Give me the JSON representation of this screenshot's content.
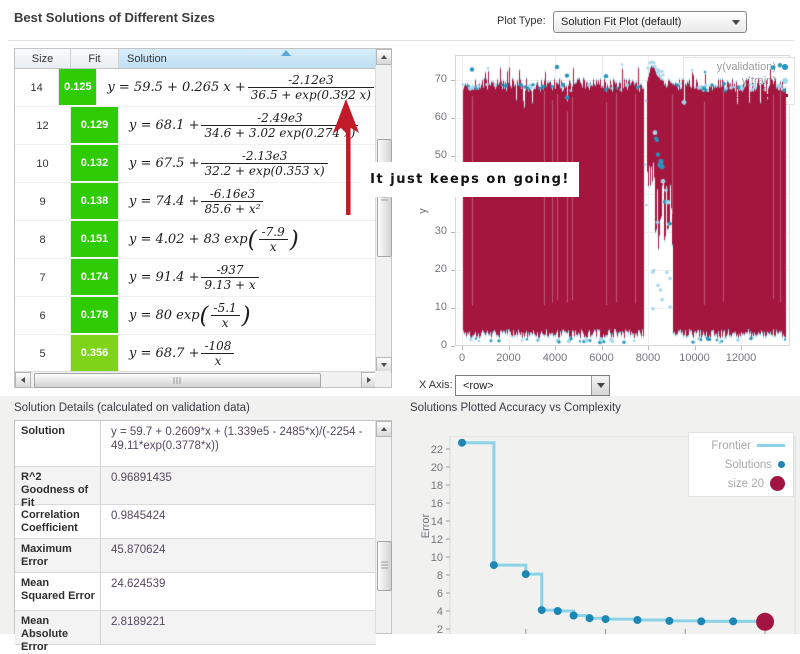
{
  "header": {
    "title": "Best Solutions of Different Sizes",
    "plot_type_label": "Plot Type:",
    "plot_type_value": "Solution Fit Plot (default)"
  },
  "solutions_table": {
    "columns": [
      "Size",
      "Fit",
      "Solution"
    ],
    "sorted_column": "Solution",
    "rows": [
      {
        "size": "14",
        "fit": "0.125",
        "fit_color": "#2fcc05",
        "eq": [
          {
            "t": "txt",
            "v": "y = 59.5 + 0.265 x + "
          },
          {
            "t": "frac",
            "n": "-2.12e3",
            "d": "36.5 + exp(0.392 x)"
          }
        ]
      },
      {
        "size": "12",
        "fit": "0.129",
        "fit_color": "#2fcc05",
        "eq": [
          {
            "t": "txt",
            "v": "y = 68.1 + "
          },
          {
            "t": "frac",
            "n": "-2.49e3",
            "d": "34.6 + 3.02 exp(0.274 x)"
          }
        ]
      },
      {
        "size": "10",
        "fit": "0.132",
        "fit_color": "#2fcc05",
        "eq": [
          {
            "t": "txt",
            "v": "y = 67.5 + "
          },
          {
            "t": "frac",
            "n": "-2.13e3",
            "d": "32.2 + exp(0.353 x)"
          }
        ]
      },
      {
        "size": "9",
        "fit": "0.138",
        "fit_color": "#2fcc05",
        "eq": [
          {
            "t": "txt",
            "v": "y = 74.4 + "
          },
          {
            "t": "frac",
            "n": "-6.16e3",
            "d": "85.6 + x²"
          }
        ]
      },
      {
        "size": "8",
        "fit": "0.151",
        "fit_color": "#2fcc05",
        "eq": [
          {
            "t": "txt",
            "v": "y = 4.02 + 83 exp"
          },
          {
            "t": "lp"
          },
          {
            "t": "frac",
            "n": "-7.9",
            "d": "x"
          },
          {
            "t": "rp"
          }
        ]
      },
      {
        "size": "7",
        "fit": "0.174",
        "fit_color": "#2fcc05",
        "eq": [
          {
            "t": "txt",
            "v": "y = 91.4 + "
          },
          {
            "t": "frac",
            "n": "-937",
            "d": "9.13 + x"
          }
        ]
      },
      {
        "size": "6",
        "fit": "0.178",
        "fit_color": "#2fcc05",
        "eq": [
          {
            "t": "txt",
            "v": "y = 80 exp"
          },
          {
            "t": "lp"
          },
          {
            "t": "frac",
            "n": "-5.1",
            "d": "x"
          },
          {
            "t": "rp"
          }
        ]
      },
      {
        "size": "5",
        "fit": "0.356",
        "fit_color": "#7fd419",
        "eq": [
          {
            "t": "txt",
            "v": "y = 68.7 + "
          },
          {
            "t": "frac",
            "n": "-108",
            "d": "x"
          }
        ]
      }
    ]
  },
  "annotation": {
    "text": "It just keeps on going!",
    "arrow_color": "#c21a28"
  },
  "fit_plot": {
    "ylabel": "y",
    "xaxis_label": "X Axis:",
    "xaxis_value": "<row>",
    "legend": [
      {
        "label": "y(validation)",
        "marker": "dot",
        "color": "#2697be"
      },
      {
        "label": "y(train)",
        "marker": "dot",
        "color": "#a3d8ec"
      },
      {
        "label": "size 20",
        "marker": "line",
        "color": "#a5163f"
      }
    ]
  },
  "details": {
    "header": "Solution Details (calculated on validation data)",
    "rows": [
      {
        "label": "Solution",
        "value": "y = 59.7 + 0.2609*x + (1.339e5 - 2485*x)/(-2254 - 49.11*exp(0.3778*x))"
      },
      {
        "label": "R^2 Goodness of Fit",
        "value": "0.96891435"
      },
      {
        "label": "Correlation Coefficient",
        "value": "0.9845424"
      },
      {
        "label": "Maximum Error",
        "value": "45.870624"
      },
      {
        "label": "Mean Squared Error",
        "value": "24.624539"
      },
      {
        "label": "Mean Absolute Error",
        "value": "2.8189221"
      }
    ]
  },
  "accuracy": {
    "header": "Solutions Plotted Accuracy vs Complexity",
    "ylabel": "Error",
    "legend": [
      {
        "label": "Frontier",
        "marker": "line",
        "color": "#8cd2e8"
      },
      {
        "label": "Solutions",
        "marker": "dot",
        "color": "#1c86b4"
      },
      {
        "label": "size 20",
        "marker": "bigdot",
        "color": "#a21540"
      }
    ]
  },
  "chart_data": [
    {
      "id": "solution_fit_plot",
      "type": "scatter",
      "title": "Solution Fit Plot (default)",
      "xlabel": "<row>",
      "ylabel": "y",
      "xlim": [
        0,
        13900
      ],
      "ylim": [
        0,
        76
      ],
      "xticks": [
        0,
        2000,
        4000,
        6000,
        8000,
        10000,
        12000
      ],
      "yticks": [
        0,
        10,
        20,
        30,
        40,
        50,
        60,
        70
      ],
      "grid": true,
      "legend_position": "top-right",
      "legend": [
        "y(validation)",
        "y(train)",
        "size 20"
      ],
      "series_summary": {
        "description": "~13900 rows of y(train)/y(validation) points densely oscillating between ~3 and ~70, overplotted by the dark-red size-20 model line, forming a solid crimson band with cyan fringes",
        "band": {
          "x_start": 30,
          "x_end": 13900,
          "y_bottom": 3,
          "y_top": 70
        },
        "gap_full_height": [
          7800,
          7950
        ],
        "peak": {
          "x_start": 7950,
          "x_end": 8650,
          "y_top_max": 74,
          "y_bottom": 45
        },
        "lower_white_region": [
          7950,
          9050
        ],
        "descending_tail_dots": {
          "x_start": 8300,
          "x_end": 8950,
          "y_from": 56,
          "y_to": 33
        },
        "top_outliers_y": [
          71,
          75
        ],
        "colors": {
          "model_line": "#a5163f",
          "validation": "#2697be",
          "train": "#a3d8ec"
        }
      }
    },
    {
      "id": "accuracy_vs_complexity",
      "type": "line",
      "title": "Solutions Plotted Accuracy vs Complexity",
      "xlabel": "",
      "ylabel": "Error",
      "xlim": [
        0,
        21
      ],
      "ylim": [
        1.5,
        23.5
      ],
      "yticks": [
        2,
        4,
        6,
        8,
        10,
        12,
        14,
        16,
        18,
        20,
        22
      ],
      "xticks_unlabeled": [
        5,
        10,
        15,
        20
      ],
      "legend": [
        "Frontier",
        "Solutions",
        "size 20"
      ],
      "frontier_style": "step-after",
      "series": [
        {
          "name": "Solutions",
          "x": [
            1,
            3,
            5,
            6,
            7,
            8,
            9,
            10,
            12,
            14,
            16,
            18
          ],
          "y": [
            22.7,
            9.1,
            8.1,
            4.1,
            4.0,
            3.5,
            3.2,
            3.1,
            3.0,
            2.9,
            2.85,
            2.85
          ]
        },
        {
          "name": "size 20",
          "x": [
            20
          ],
          "y": [
            2.8
          ]
        }
      ]
    }
  ]
}
